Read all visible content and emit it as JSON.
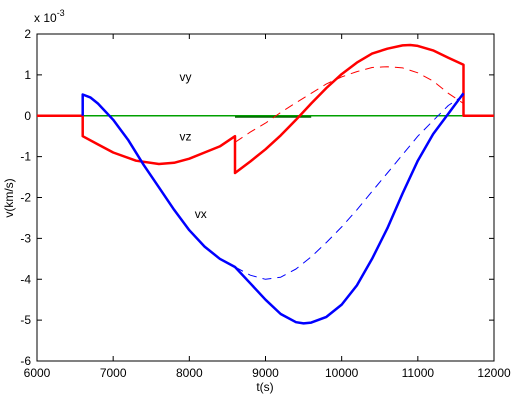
{
  "chart_data": {
    "type": "line",
    "title": "",
    "xlabel": "t(s)",
    "ylabel": "v(km/s)",
    "y_exponent_label": "x 10",
    "y_exponent_power": "-3",
    "xlim": [
      6000,
      12000
    ],
    "ylim": [
      -6,
      2
    ],
    "xticks": [
      6000,
      7000,
      8000,
      9000,
      10000,
      11000,
      12000
    ],
    "xtick_labels": [
      "6000",
      "7000",
      "8000",
      "9000",
      "10000",
      "11000",
      "12000"
    ],
    "yticks": [
      -6,
      -5,
      -4,
      -3,
      -2,
      -1,
      0,
      1,
      2
    ],
    "ytick_labels": [
      "-6",
      "-5",
      "-4",
      "-3",
      "-2",
      "-1",
      "0",
      "1",
      "2"
    ],
    "grid": false,
    "colors": {
      "vx": "#0000ff",
      "vy": "#00a000",
      "vz": "#ff0000",
      "vy_dark": "#006400"
    },
    "annotations": [
      {
        "text": "vy",
        "x": 7950,
        "y": 0.85
      },
      {
        "text": "vz",
        "x": 7950,
        "y": -0.6
      },
      {
        "text": "vx",
        "x": 8150,
        "y": -2.5
      }
    ],
    "series": [
      {
        "key": "vy",
        "style": "solid",
        "width": 1.5,
        "x": [
          6000,
          12000
        ],
        "y": [
          0,
          0
        ]
      },
      {
        "key": "vy_dark",
        "style": "solid",
        "width": 1.5,
        "x": [
          8600,
          9600
        ],
        "y": [
          -0.03,
          -0.03
        ]
      },
      {
        "key": "vz",
        "style": "solid",
        "width": 2.5,
        "x": [
          6000,
          6600,
          6600,
          6800,
          7000,
          7300,
          7600,
          7800,
          8000,
          8200,
          8400,
          8600,
          8600,
          8800,
          9000,
          9200,
          9400,
          9600,
          9800,
          10000,
          10200,
          10400,
          10600,
          10800,
          10900,
          11000,
          11200,
          11400,
          11600,
          11600,
          11700,
          11900,
          12000
        ],
        "y": [
          0,
          0,
          -0.5,
          -0.7,
          -0.9,
          -1.1,
          -1.18,
          -1.15,
          -1.05,
          -0.9,
          -0.75,
          -0.5,
          -1.4,
          -1.12,
          -0.82,
          -0.48,
          -0.1,
          0.3,
          0.68,
          1.02,
          1.3,
          1.52,
          1.64,
          1.72,
          1.73,
          1.71,
          1.6,
          1.42,
          1.25,
          0,
          0,
          0,
          0
        ]
      },
      {
        "key": "vz",
        "style": "dashed",
        "width": 1,
        "x": [
          8600,
          8800,
          9000,
          9200,
          9400,
          9600,
          9800,
          10000,
          10200,
          10400,
          10600,
          10800,
          11000,
          11200,
          11400,
          11600
        ],
        "y": [
          -0.65,
          -0.4,
          -0.18,
          0.08,
          0.32,
          0.55,
          0.78,
          0.95,
          1.08,
          1.18,
          1.2,
          1.17,
          1.05,
          0.85,
          0.55,
          0.3
        ]
      },
      {
        "key": "vx",
        "style": "solid",
        "width": 2.5,
        "x": [
          6600,
          6600,
          6700,
          6800,
          7000,
          7200,
          7400,
          7600,
          7800,
          8000,
          8200,
          8400,
          8600,
          8800,
          9000,
          9200,
          9400,
          9500,
          9600,
          9800,
          10000,
          10200,
          10400,
          10600,
          10800,
          11000,
          11200,
          11400,
          11600
        ],
        "y": [
          0,
          0.52,
          0.45,
          0.3,
          -0.1,
          -0.6,
          -1.2,
          -1.75,
          -2.3,
          -2.8,
          -3.2,
          -3.5,
          -3.7,
          -4.1,
          -4.5,
          -4.85,
          -5.05,
          -5.08,
          -5.06,
          -4.92,
          -4.62,
          -4.15,
          -3.5,
          -2.75,
          -1.9,
          -1.1,
          -0.45,
          0.05,
          0.55
        ]
      },
      {
        "key": "vx",
        "style": "dashed",
        "width": 1,
        "x": [
          8600,
          8800,
          9000,
          9200,
          9400,
          9600,
          9800,
          10000,
          10200,
          10400,
          10600,
          10800,
          11000,
          11200,
          11400,
          11600
        ],
        "y": [
          -3.7,
          -3.9,
          -4.0,
          -3.95,
          -3.75,
          -3.45,
          -3.1,
          -2.72,
          -2.3,
          -1.85,
          -1.4,
          -0.95,
          -0.5,
          -0.12,
          0.25,
          0.5
        ]
      }
    ]
  }
}
